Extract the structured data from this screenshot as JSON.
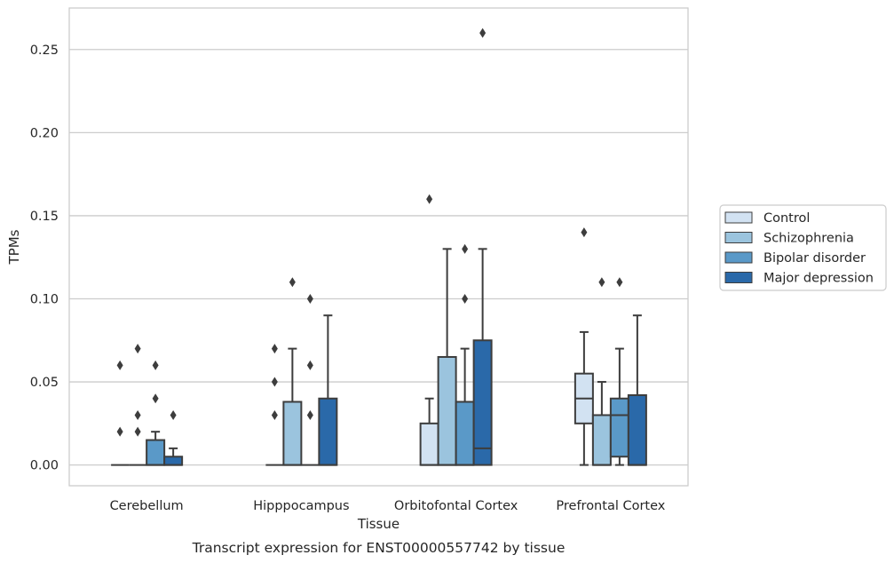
{
  "chart_data": {
    "type": "boxplot",
    "caption": "Transcript expression for ENST00000557742 by tissue",
    "xlabel": "Tissue",
    "ylabel": "TPMs",
    "ylim": [
      -0.0125,
      0.275
    ],
    "yticks": [
      0.0,
      0.05,
      0.1,
      0.15,
      0.2,
      0.25
    ],
    "ytick_labels": [
      "0.00",
      "0.05",
      "0.10",
      "0.15",
      "0.20",
      "0.25"
    ],
    "grid": "horizontal",
    "legend_position": "right",
    "categories": [
      "Cerebellum",
      "Hipppocampus",
      "Orbitofontal Cortex",
      "Prefrontal Cortex"
    ],
    "series": [
      {
        "name": "Control",
        "color": "#d2e2f2",
        "boxes": [
          {
            "whisker_low": 0.0,
            "q1": 0.0,
            "median": 0.0,
            "q3": 0.0,
            "whisker_high": 0.0,
            "outliers": [
              0.02,
              0.06
            ]
          },
          {
            "whisker_low": 0.0,
            "q1": 0.0,
            "median": 0.0,
            "q3": 0.0,
            "whisker_high": 0.0,
            "outliers": [
              0.03,
              0.05,
              0.07
            ]
          },
          {
            "whisker_low": 0.0,
            "q1": 0.0,
            "median": 0.0,
            "q3": 0.025,
            "whisker_high": 0.04,
            "outliers": [
              0.16
            ]
          },
          {
            "whisker_low": 0.0,
            "q1": 0.025,
            "median": 0.04,
            "q3": 0.055,
            "whisker_high": 0.08,
            "outliers": [
              0.14
            ]
          }
        ]
      },
      {
        "name": "Schizophrenia",
        "color": "#9bc4de",
        "boxes": [
          {
            "whisker_low": 0.0,
            "q1": 0.0,
            "median": 0.0,
            "q3": 0.0,
            "whisker_high": 0.0,
            "outliers": [
              0.02,
              0.03,
              0.07
            ]
          },
          {
            "whisker_low": 0.0,
            "q1": 0.0,
            "median": 0.0,
            "q3": 0.038,
            "whisker_high": 0.07,
            "outliers": [
              0.11
            ]
          },
          {
            "whisker_low": 0.0,
            "q1": 0.0,
            "median": 0.0,
            "q3": 0.065,
            "whisker_high": 0.13,
            "outliers": []
          },
          {
            "whisker_low": 0.0,
            "q1": 0.0,
            "median": 0.0,
            "q3": 0.03,
            "whisker_high": 0.05,
            "outliers": [
              0.11
            ]
          }
        ]
      },
      {
        "name": "Bipolar disorder",
        "color": "#5a99c8",
        "boxes": [
          {
            "whisker_low": 0.0,
            "q1": 0.0,
            "median": 0.0,
            "q3": 0.015,
            "whisker_high": 0.02,
            "outliers": [
              0.04,
              0.06
            ]
          },
          {
            "whisker_low": 0.0,
            "q1": 0.0,
            "median": 0.0,
            "q3": 0.0,
            "whisker_high": 0.0,
            "outliers": [
              0.03,
              0.06,
              0.1
            ]
          },
          {
            "whisker_low": 0.0,
            "q1": 0.0,
            "median": 0.0,
            "q3": 0.038,
            "whisker_high": 0.07,
            "outliers": [
              0.1,
              0.13
            ]
          },
          {
            "whisker_low": 0.0,
            "q1": 0.005,
            "median": 0.03,
            "q3": 0.04,
            "whisker_high": 0.07,
            "outliers": [
              0.11
            ]
          }
        ]
      },
      {
        "name": "Major depression",
        "color": "#2a69a9",
        "boxes": [
          {
            "whisker_low": 0.0,
            "q1": 0.0,
            "median": 0.0,
            "q3": 0.005,
            "whisker_high": 0.01,
            "outliers": [
              0.03
            ]
          },
          {
            "whisker_low": 0.0,
            "q1": 0.0,
            "median": 0.0,
            "q3": 0.04,
            "whisker_high": 0.09,
            "outliers": []
          },
          {
            "whisker_low": 0.0,
            "q1": 0.0,
            "median": 0.01,
            "q3": 0.075,
            "whisker_high": 0.13,
            "outliers": [
              0.26
            ]
          },
          {
            "whisker_low": 0.0,
            "q1": 0.0,
            "median": 0.0,
            "q3": 0.042,
            "whisker_high": 0.09,
            "outliers": []
          }
        ]
      }
    ]
  }
}
